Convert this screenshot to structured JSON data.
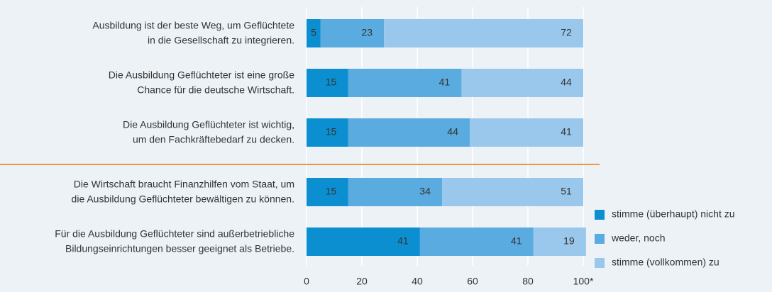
{
  "chart_data": {
    "type": "stacked-bar-horizontal",
    "categories": [
      [
        "Ausbildung ist der beste Weg, um Geflüchtete",
        "in die Gesellschaft zu integrieren."
      ],
      [
        "Die Ausbildung Geflüchteter ist eine große",
        "Chance für die deutsche Wirtschaft."
      ],
      [
        "Die Ausbildung Geflüchteter ist wichtig,",
        "um den Fachkräftebedarf zu decken."
      ],
      [
        "Die Wirtschaft braucht Finanzhilfen vom Staat, um",
        "die Ausbildung Geflüchteter bewältigen zu können."
      ],
      [
        "Für die Ausbildung Geflüchteter sind außerbetriebliche",
        "Bildungseinrichtungen besser geeignet als Betriebe."
      ]
    ],
    "series": [
      {
        "name": "stimme (überhaupt) nicht zu",
        "color": "#0b8fd1",
        "values": [
          5,
          15,
          15,
          15,
          41
        ]
      },
      {
        "name": "weder, noch",
        "color": "#5aabdf",
        "values": [
          23,
          41,
          44,
          34,
          41
        ]
      },
      {
        "name": "stimme (vollkommen) zu",
        "color": "#9ac8ec",
        "values": [
          72,
          44,
          41,
          51,
          19
        ]
      }
    ],
    "xlim": [
      0,
      100
    ],
    "xticks": [
      0,
      20,
      40,
      60,
      80,
      {
        "value": 100,
        "label": "100*"
      }
    ],
    "grid": true,
    "legend": "right"
  }
}
